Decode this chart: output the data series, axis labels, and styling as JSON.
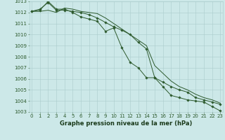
{
  "title": "Graphe pression niveau de la mer (hPa)",
  "bg_color": "#cce8e8",
  "grid_color": "#aacccc",
  "line_color": "#2d5a2d",
  "marker_color": "#2d5a2d",
  "x_values": [
    0,
    1,
    2,
    3,
    4,
    5,
    6,
    7,
    8,
    9,
    10,
    11,
    12,
    13,
    14,
    15,
    16,
    17,
    18,
    19,
    20,
    21,
    22,
    23
  ],
  "series1": [
    1012.1,
    1012.3,
    1012.9,
    1012.2,
    1012.2,
    1012.1,
    1012.0,
    1011.8,
    1011.5,
    1011.1,
    1010.7,
    1010.4,
    1010.0,
    1009.3,
    1008.7,
    1006.1,
    1005.7,
    1005.3,
    1005.0,
    1004.8,
    1004.3,
    1004.1,
    1003.9,
    1003.7
  ],
  "series2": [
    1012.1,
    1012.2,
    1013.0,
    1012.3,
    1012.3,
    1012.0,
    1011.6,
    1011.4,
    1011.2,
    1010.3,
    1010.6,
    1008.8,
    1007.5,
    1007.0,
    1006.1,
    1006.1,
    1005.3,
    1004.5,
    1004.3,
    1004.1,
    1004.0,
    1003.9,
    1003.5,
    1003.1
  ],
  "series3": [
    1012.1,
    1012.1,
    1012.2,
    1012.0,
    1012.4,
    1012.3,
    1012.1,
    1012.0,
    1011.9,
    1011.5,
    1011.0,
    1010.5,
    1010.0,
    1009.5,
    1009.0,
    1007.2,
    1006.5,
    1005.8,
    1005.3,
    1005.0,
    1004.6,
    1004.3,
    1004.1,
    1003.8
  ],
  "ylim_min": 1003,
  "ylim_max": 1013,
  "yticks": [
    1003,
    1004,
    1005,
    1006,
    1007,
    1008,
    1009,
    1010,
    1011,
    1012,
    1013
  ],
  "xticks": [
    0,
    1,
    2,
    3,
    4,
    5,
    6,
    7,
    8,
    9,
    10,
    11,
    12,
    13,
    14,
    15,
    16,
    17,
    18,
    19,
    20,
    21,
    22,
    23
  ],
  "tick_label_size": 5.0,
  "title_fontsize": 6.0,
  "title_color": "#1a3a1a",
  "axis_label_color": "#2d5a2d"
}
